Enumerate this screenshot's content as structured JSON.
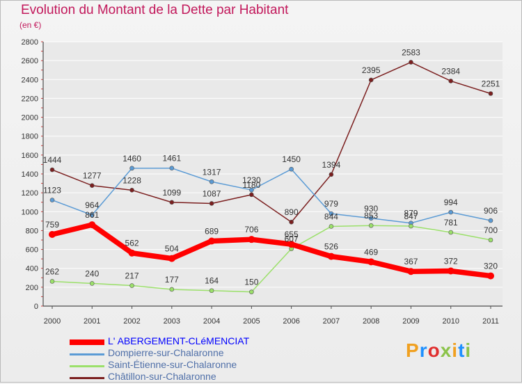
{
  "title": "Evolution du Montant de la Dette par Habitant",
  "subtitle": "(en €)",
  "logo": {
    "text": "Proxiti",
    "colors": [
      "#f0a020",
      "#1e90ff",
      "#e03030",
      "#8bc34a",
      "#f0a020",
      "#1e90ff",
      "#8bc34a"
    ]
  },
  "colors": {
    "title": "#c2185b",
    "axis": "#4d4d4d",
    "grid": "#ffffff",
    "label": "#333333"
  },
  "chart_data": {
    "type": "line",
    "title": "Evolution du Montant de la Dette par Habitant",
    "ylabel": "(en €)",
    "xlabel": "",
    "ylim": [
      0,
      2800
    ],
    "yticks": [
      0,
      200,
      400,
      600,
      800,
      1000,
      1200,
      1400,
      1600,
      1800,
      2000,
      2200,
      2400,
      2600,
      2800
    ],
    "categories": [
      "2000",
      "2001",
      "2002",
      "2003",
      "2004",
      "2005",
      "2006",
      "2007",
      "2008",
      "2009",
      "2010",
      "2011"
    ],
    "grid": true,
    "legend": "bottom-left",
    "series": [
      {
        "name": "L' ABERGEMENT-CLéMENCIAT",
        "color": "#ff0000",
        "legend_color": "#0000ff",
        "stroke": 7.5,
        "marker": 5,
        "values": [
          759,
          861,
          562,
          504,
          689,
          706,
          655,
          526,
          469,
          367,
          372,
          320
        ],
        "labels": [
          "759",
          "861",
          "562",
          "504",
          "689",
          "706",
          "655",
          "526",
          "469",
          "367",
          "372",
          "320"
        ]
      },
      {
        "name": "Dompierre-sur-Chalaronne",
        "color": "#5b9bd5",
        "legend_color": "#4f6fa8",
        "stroke": 1.5,
        "marker": 3,
        "values": [
          1123,
          964,
          1460,
          1461,
          1317,
          1230,
          1450,
          979,
          930,
          879,
          994,
          906
        ],
        "labels": [
          "1123",
          "964",
          "1460",
          "1461",
          "1317",
          "1230",
          "1450",
          "979",
          "930",
          "879",
          "994",
          "906"
        ]
      },
      {
        "name": "Saint-Étienne-sur-Chalaronne",
        "color": "#9be06a",
        "legend_color": "#4f6fa8",
        "stroke": 1.5,
        "marker": 3,
        "values": [
          262,
          240,
          217,
          177,
          164,
          150,
          607,
          844,
          853,
          847,
          781,
          700
        ],
        "labels": [
          "262",
          "240",
          "217",
          "177",
          "164",
          "150",
          "607",
          "844",
          "853",
          "847",
          "781",
          "700"
        ]
      },
      {
        "name": "Châtillon-sur-Chalaronne",
        "color": "#7b1f1f",
        "legend_color": "#4f6fa8",
        "stroke": 1.5,
        "marker": 3,
        "values": [
          1444,
          1277,
          1228,
          1099,
          1087,
          1180,
          890,
          1394,
          2395,
          2583,
          2384,
          2251
        ],
        "labels": [
          "1444",
          "1277",
          "1228",
          "1099",
          "1087",
          "1180",
          "890",
          "1394",
          "2395",
          "2583",
          "2384",
          "2251"
        ]
      }
    ]
  }
}
